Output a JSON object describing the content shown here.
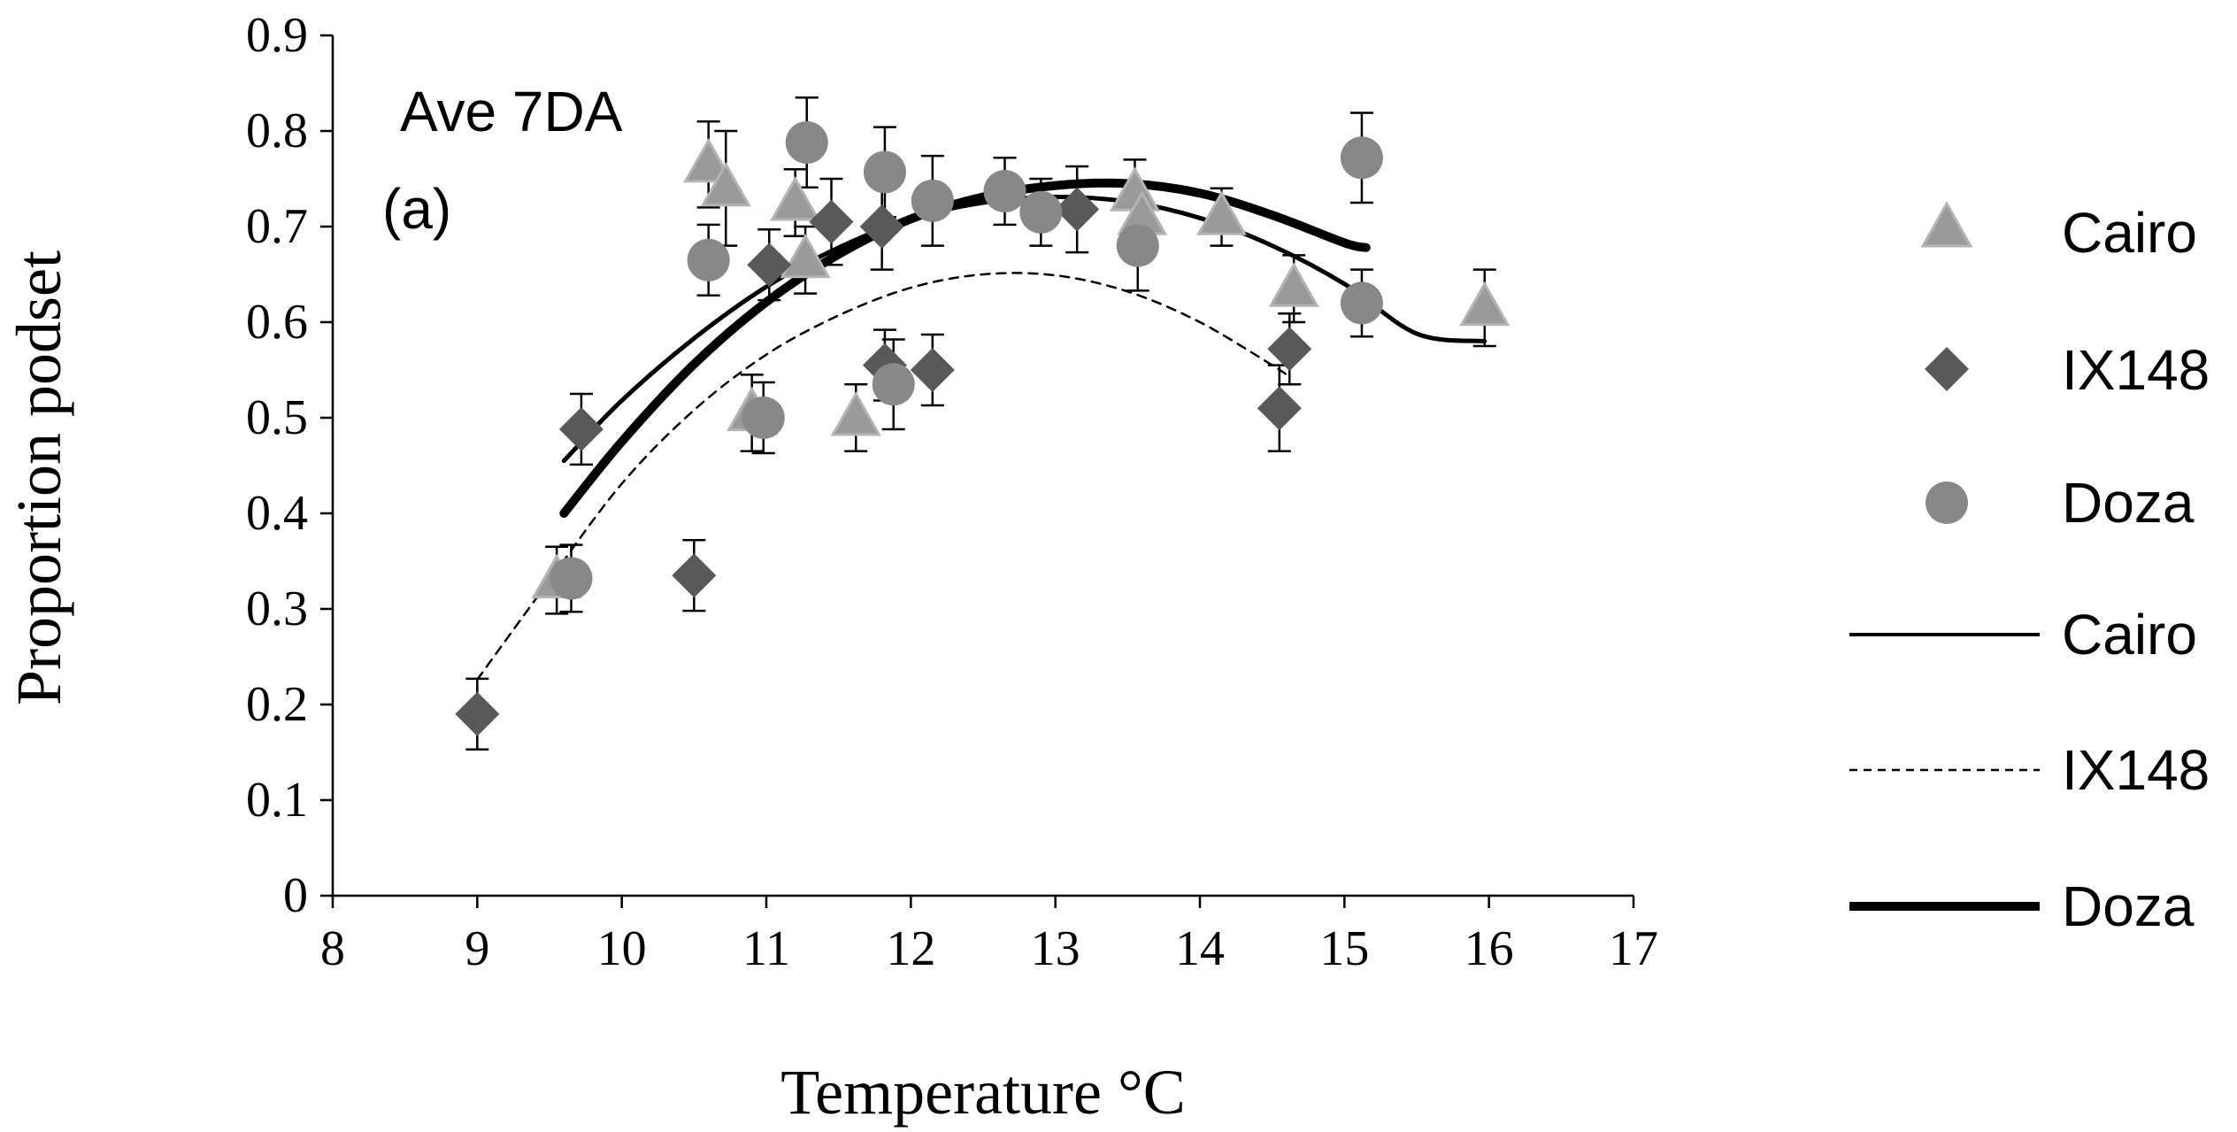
{
  "chart_data": {
    "type": "scatter",
    "xlabel": "Temperature °C",
    "ylabel": "Proportion podset",
    "xlim": [
      8,
      17
    ],
    "ylim": [
      0,
      0.9
    ],
    "x_ticks": [
      "8",
      "9",
      "10",
      "11",
      "12",
      "13",
      "14",
      "15",
      "16",
      "17"
    ],
    "y_ticks": [
      "0",
      "0.1",
      "0.2",
      "0.3",
      "0.4",
      "0.5",
      "0.6",
      "0.7",
      "0.8",
      "0.9"
    ],
    "annotations": {
      "line1": "Ave 7DA",
      "line2": "(a)"
    },
    "legend": {
      "position": "right",
      "entries": [
        "Cairo",
        "IX148",
        "Doza",
        "Cairo",
        "IX148",
        "Doza"
      ]
    },
    "series": [
      {
        "name": "Cairo",
        "kind": "points",
        "marker": "triangle",
        "color": "#9a9a9a",
        "points": [
          {
            "x": 9.55,
            "y": 0.33,
            "err": 0.035
          },
          {
            "x": 10.6,
            "y": 0.765,
            "err": 0.045
          },
          {
            "x": 10.72,
            "y": 0.74,
            "err": 0.06
          },
          {
            "x": 10.9,
            "y": 0.505,
            "err": 0.04
          },
          {
            "x": 11.2,
            "y": 0.725,
            "err": 0.035
          },
          {
            "x": 11.27,
            "y": 0.665,
            "err": 0.035
          },
          {
            "x": 11.62,
            "y": 0.5,
            "err": 0.035
          },
          {
            "x": 13.55,
            "y": 0.735,
            "err": 0.035
          },
          {
            "x": 13.6,
            "y": 0.71,
            "err": 0.035
          },
          {
            "x": 14.15,
            "y": 0.71,
            "err": 0.03
          },
          {
            "x": 14.65,
            "y": 0.635,
            "err": 0.035
          },
          {
            "x": 15.97,
            "y": 0.615,
            "err": 0.04
          }
        ]
      },
      {
        "name": "IX148",
        "kind": "points",
        "marker": "diamond",
        "color": "#595959",
        "points": [
          {
            "x": 9.0,
            "y": 0.19,
            "err": 0.037
          },
          {
            "x": 9.72,
            "y": 0.488,
            "err": 0.037
          },
          {
            "x": 10.5,
            "y": 0.335,
            "err": 0.037
          },
          {
            "x": 11.02,
            "y": 0.66,
            "err": 0.037
          },
          {
            "x": 11.45,
            "y": 0.705,
            "err": 0.045
          },
          {
            "x": 11.8,
            "y": 0.7,
            "err": 0.045
          },
          {
            "x": 11.82,
            "y": 0.555,
            "err": 0.037
          },
          {
            "x": 12.15,
            "y": 0.55,
            "err": 0.037
          },
          {
            "x": 13.15,
            "y": 0.718,
            "err": 0.045
          },
          {
            "x": 14.55,
            "y": 0.51,
            "err": 0.045
          },
          {
            "x": 14.62,
            "y": 0.572,
            "err": 0.037
          }
        ]
      },
      {
        "name": "Doza",
        "kind": "points",
        "marker": "circle",
        "color": "#888888",
        "points": [
          {
            "x": 9.65,
            "y": 0.332,
            "err": 0.035
          },
          {
            "x": 10.6,
            "y": 0.665,
            "err": 0.037
          },
          {
            "x": 10.98,
            "y": 0.5,
            "err": 0.037
          },
          {
            "x": 11.28,
            "y": 0.788,
            "err": 0.047
          },
          {
            "x": 11.82,
            "y": 0.757,
            "err": 0.047
          },
          {
            "x": 11.88,
            "y": 0.535,
            "err": 0.047
          },
          {
            "x": 12.15,
            "y": 0.727,
            "err": 0.047
          },
          {
            "x": 12.65,
            "y": 0.737,
            "err": 0.035
          },
          {
            "x": 12.9,
            "y": 0.715,
            "err": 0.035
          },
          {
            "x": 13.57,
            "y": 0.68,
            "err": 0.047
          },
          {
            "x": 15.12,
            "y": 0.772,
            "err": 0.047
          },
          {
            "x": 15.12,
            "y": 0.62,
            "err": 0.035
          }
        ]
      },
      {
        "name": "Cairo",
        "kind": "trend",
        "line_style": "solid-thin",
        "x": [
          9.6,
          10,
          10.5,
          11,
          11.5,
          12,
          12.5,
          13,
          13.5,
          14,
          14.5,
          15,
          15.5,
          15.97
        ],
        "y": [
          0.455,
          0.518,
          0.583,
          0.637,
          0.678,
          0.708,
          0.725,
          0.731,
          0.726,
          0.709,
          0.68,
          0.64,
          0.588,
          0.58
        ]
      },
      {
        "name": "IX148",
        "kind": "trend",
        "line_style": "dashed",
        "x": [
          9.0,
          9.5,
          10,
          10.5,
          11,
          11.5,
          12,
          12.5,
          13,
          13.5,
          14,
          14.5,
          14.6
        ],
        "y": [
          0.226,
          0.33,
          0.431,
          0.508,
          0.566,
          0.607,
          0.636,
          0.65,
          0.649,
          0.632,
          0.6,
          0.555,
          0.545
        ]
      },
      {
        "name": "Doza",
        "kind": "trend",
        "line_style": "solid-thick",
        "x": [
          9.6,
          10,
          10.5,
          11,
          11.5,
          12,
          12.5,
          13,
          13.5,
          14,
          14.5,
          15,
          15.15
        ],
        "y": [
          0.4,
          0.475,
          0.556,
          0.621,
          0.671,
          0.708,
          0.731,
          0.743,
          0.745,
          0.735,
          0.712,
          0.683,
          0.678
        ]
      }
    ]
  }
}
